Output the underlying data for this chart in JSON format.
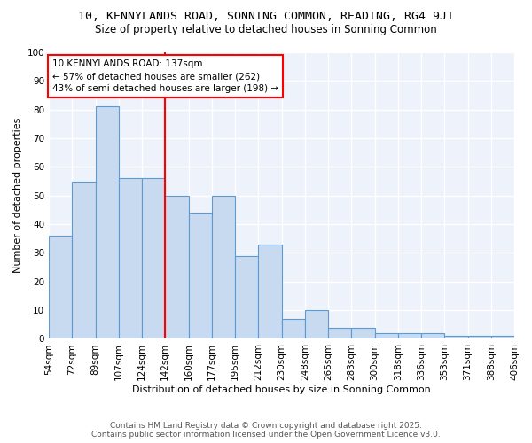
{
  "title": "10, KENNYLANDS ROAD, SONNING COMMON, READING, RG4 9JT",
  "subtitle": "Size of property relative to detached houses in Sonning Common",
  "xlabel": "Distribution of detached houses by size in Sonning Common",
  "ylabel": "Number of detached properties",
  "categories": [
    "54sqm",
    "72sqm",
    "89sqm",
    "107sqm",
    "124sqm",
    "142sqm",
    "160sqm",
    "177sqm",
    "195sqm",
    "212sqm",
    "230sqm",
    "248sqm",
    "265sqm",
    "283sqm",
    "300sqm",
    "318sqm",
    "336sqm",
    "353sqm",
    "371sqm",
    "388sqm",
    "406sqm"
  ],
  "bar_heights": [
    36,
    55,
    81,
    56,
    56,
    50,
    44,
    50,
    29,
    33,
    7,
    10,
    4,
    4,
    2,
    2,
    2,
    1,
    1,
    1,
    0
  ],
  "bar_color": "#c8daf0",
  "bar_edge_color": "#5b9bd5",
  "red_line_index": 5,
  "annotation_line1": "10 KENNYLANDS ROAD: 137sqm",
  "annotation_line2": "← 57% of detached houses are smaller (262)",
  "annotation_line3": "43% of semi-detached houses are larger (198) →",
  "footer_line1": "Contains HM Land Registry data © Crown copyright and database right 2025.",
  "footer_line2": "Contains public sector information licensed under the Open Government Licence v3.0.",
  "bg_color": "#eef2fa",
  "grid_color": "#ffffff",
  "ylim": [
    0,
    100
  ],
  "yticks": [
    0,
    10,
    20,
    30,
    40,
    50,
    60,
    70,
    80,
    90,
    100
  ],
  "title_fontsize": 9.5,
  "subtitle_fontsize": 8.5,
  "xlabel_fontsize": 8.0,
  "ylabel_fontsize": 8.0,
  "tick_fontsize": 7.5,
  "annotation_fontsize": 7.5,
  "footer_fontsize": 6.5
}
